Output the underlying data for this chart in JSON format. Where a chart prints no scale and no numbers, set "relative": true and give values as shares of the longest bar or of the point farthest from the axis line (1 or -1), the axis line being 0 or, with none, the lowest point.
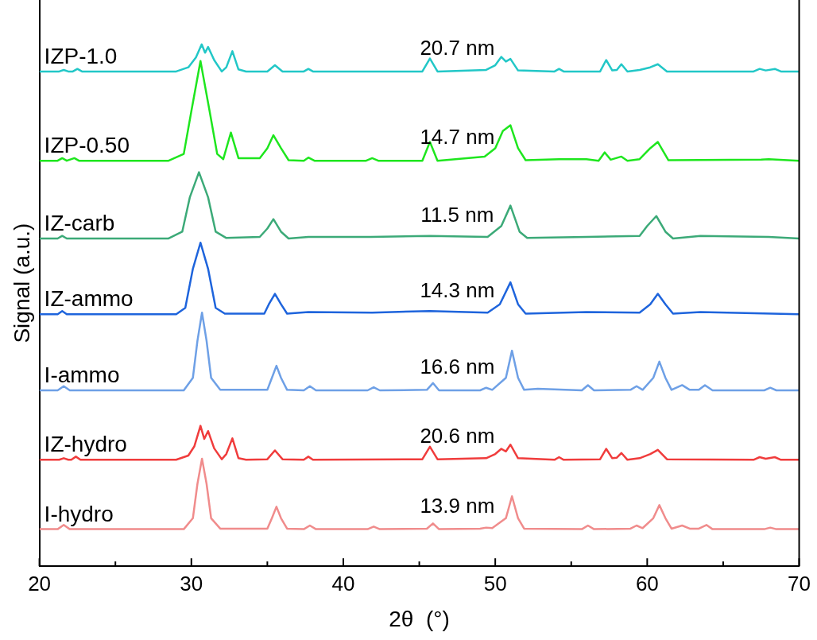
{
  "chart_data": {
    "type": "line",
    "relative": true,
    "xlabel": "2θ  (°)",
    "ylabel": "Signal (a.u.)",
    "xlim": [
      20,
      70
    ],
    "xticks": [
      20,
      {
        "value": 25,
        "label": null
      },
      30,
      {
        "value": 35,
        "label": null
      },
      40,
      {
        "value": 45,
        "label": null
      },
      50,
      {
        "value": 55,
        "label": null
      },
      60,
      {
        "value": 65,
        "label": null
      },
      70
    ],
    "line_style": "solid",
    "series": [
      {
        "name": "IZP-1.0",
        "color": "#22c7c7",
        "x": [
          20,
          21.3,
          21.6,
          21.9,
          22.2,
          22.5,
          22.8,
          29.0,
          29.8,
          30.3,
          30.68,
          30.9,
          31.1,
          31.5,
          32.0,
          32.3,
          32.7,
          33.1,
          33.6,
          35.0,
          35.5,
          36.0,
          37.4,
          37.7,
          38.0,
          45.2,
          45.7,
          46.2,
          49.4,
          50.0,
          50.4,
          50.7,
          51.0,
          51.5,
          53.9,
          54.2,
          54.5,
          56.9,
          57.3,
          57.7,
          58.0,
          58.3,
          58.7,
          59.5,
          60.2,
          60.7,
          61.3,
          67.0,
          67.4,
          67.8,
          68.4,
          68.8,
          70
        ],
        "values": [
          0.948,
          0.948,
          0.951,
          0.948,
          0.948,
          0.953,
          0.948,
          0.948,
          0.956,
          0.975,
          1.0,
          0.984,
          0.995,
          0.97,
          0.948,
          0.956,
          0.987,
          0.952,
          0.948,
          0.948,
          0.96,
          0.948,
          0.948,
          0.953,
          0.948,
          0.948,
          0.973,
          0.948,
          0.951,
          0.96,
          0.976,
          0.967,
          0.972,
          0.95,
          0.948,
          0.953,
          0.948,
          0.948,
          0.97,
          0.95,
          0.951,
          0.962,
          0.948,
          0.951,
          0.956,
          0.962,
          0.948,
          0.948,
          0.953,
          0.95,
          0.953,
          0.948,
          0.948
        ]
      },
      {
        "name": "IZP-0.50",
        "color": "#1ee61e",
        "x": [
          20,
          21.2,
          21.5,
          21.8,
          22.3,
          22.6,
          28.5,
          29.5,
          30.0,
          30.6,
          31.2,
          31.7,
          32.1,
          32.6,
          33.1,
          34.5,
          35.0,
          35.4,
          35.9,
          36.4,
          37.4,
          37.7,
          38.1,
          41.5,
          41.9,
          42.3,
          45.2,
          45.7,
          46.2,
          49.3,
          50.0,
          50.5,
          51.0,
          51.5,
          52.0,
          54.2,
          56.0,
          56.8,
          57.2,
          57.6,
          58.3,
          58.7,
          59.5,
          60.2,
          60.7,
          61.4,
          67.5,
          68.0,
          70
        ],
        "values": [
          0.777,
          0.777,
          0.782,
          0.777,
          0.782,
          0.777,
          0.777,
          0.79,
          0.872,
          0.968,
          0.872,
          0.79,
          0.78,
          0.831,
          0.782,
          0.782,
          0.801,
          0.826,
          0.801,
          0.778,
          0.777,
          0.783,
          0.777,
          0.777,
          0.782,
          0.777,
          0.777,
          0.813,
          0.777,
          0.785,
          0.801,
          0.834,
          0.845,
          0.801,
          0.778,
          0.78,
          0.78,
          0.777,
          0.793,
          0.779,
          0.785,
          0.777,
          0.78,
          0.801,
          0.813,
          0.778,
          0.779,
          0.78,
          0.777
        ]
      },
      {
        "name": "IZ-carb",
        "color": "#3caa78",
        "x": [
          20,
          21.2,
          21.5,
          21.8,
          28.5,
          29.4,
          29.9,
          30.5,
          31.1,
          31.6,
          32.3,
          34.5,
          35.0,
          35.4,
          35.9,
          36.4,
          37.7,
          41.8,
          45.7,
          49.5,
          50.4,
          51.0,
          51.6,
          52.1,
          56.0,
          59.5,
          60.0,
          60.6,
          61.2,
          61.7,
          63.5,
          68.0,
          70
        ],
        "values": [
          0.628,
          0.628,
          0.633,
          0.628,
          0.628,
          0.641,
          0.707,
          0.755,
          0.707,
          0.641,
          0.629,
          0.631,
          0.647,
          0.665,
          0.641,
          0.628,
          0.631,
          0.631,
          0.633,
          0.631,
          0.652,
          0.691,
          0.641,
          0.629,
          0.631,
          0.633,
          0.652,
          0.671,
          0.641,
          0.628,
          0.633,
          0.631,
          0.628
        ]
      },
      {
        "name": "IZ-ammo",
        "color": "#1e64dc",
        "x": [
          20,
          21.2,
          21.5,
          21.8,
          29.0,
          29.6,
          30.1,
          30.6,
          31.1,
          31.6,
          32.2,
          34.8,
          35.1,
          35.5,
          35.9,
          36.3,
          37.7,
          41.9,
          45.7,
          49.5,
          50.3,
          51.0,
          51.5,
          52.0,
          56.0,
          59.5,
          60.2,
          60.7,
          61.2,
          61.7,
          63.5,
          70
        ],
        "values": [
          0.483,
          0.483,
          0.489,
          0.483,
          0.483,
          0.495,
          0.57,
          0.62,
          0.57,
          0.495,
          0.484,
          0.484,
          0.502,
          0.522,
          0.502,
          0.484,
          0.487,
          0.486,
          0.489,
          0.486,
          0.502,
          0.544,
          0.502,
          0.484,
          0.487,
          0.486,
          0.502,
          0.522,
          0.502,
          0.484,
          0.487,
          0.483
        ]
      },
      {
        "name": "I-ammo",
        "color": "#6ea0e6",
        "x": [
          20,
          21.2,
          21.6,
          22.0,
          29.5,
          30.1,
          30.4,
          30.7,
          31.0,
          31.3,
          31.9,
          35.0,
          35.3,
          35.6,
          35.9,
          36.3,
          37.4,
          37.8,
          38.2,
          41.6,
          42.0,
          42.4,
          45.5,
          45.9,
          46.3,
          49.0,
          49.4,
          49.8,
          50.7,
          51.1,
          51.5,
          51.9,
          52.8,
          55.7,
          56.1,
          56.5,
          58.9,
          59.3,
          59.7,
          60.4,
          60.8,
          61.2,
          61.6,
          62.3,
          62.8,
          63.4,
          63.8,
          64.3,
          67.7,
          68.1,
          68.5,
          70
        ],
        "values": [
          0.337,
          0.337,
          0.345,
          0.337,
          0.337,
          0.361,
          0.432,
          0.486,
          0.432,
          0.361,
          0.338,
          0.338,
          0.361,
          0.384,
          0.361,
          0.338,
          0.337,
          0.345,
          0.337,
          0.337,
          0.343,
          0.337,
          0.338,
          0.351,
          0.337,
          0.337,
          0.342,
          0.338,
          0.361,
          0.413,
          0.361,
          0.338,
          0.34,
          0.337,
          0.347,
          0.337,
          0.338,
          0.345,
          0.338,
          0.361,
          0.392,
          0.361,
          0.338,
          0.347,
          0.338,
          0.338,
          0.347,
          0.337,
          0.337,
          0.342,
          0.337,
          0.337
        ]
      },
      {
        "name": "IZ-hydro",
        "color": "#f03c3c",
        "x": [
          20,
          21.3,
          21.6,
          21.9,
          22.1,
          22.4,
          22.7,
          29.0,
          29.8,
          30.2,
          30.6,
          30.85,
          31.1,
          31.5,
          32.0,
          32.3,
          32.7,
          33.1,
          33.6,
          35.0,
          35.5,
          36.0,
          37.4,
          37.7,
          38.0,
          45.2,
          45.7,
          46.2,
          49.4,
          50.0,
          50.4,
          50.7,
          51.0,
          51.5,
          53.9,
          54.2,
          54.5,
          56.9,
          57.3,
          57.7,
          58.0,
          58.3,
          58.7,
          59.5,
          60.2,
          60.7,
          61.3,
          67.0,
          67.4,
          67.8,
          68.4,
          68.8,
          70
        ],
        "values": [
          0.204,
          0.204,
          0.207,
          0.204,
          0.204,
          0.21,
          0.204,
          0.204,
          0.212,
          0.23,
          0.269,
          0.244,
          0.259,
          0.226,
          0.205,
          0.215,
          0.245,
          0.207,
          0.204,
          0.205,
          0.222,
          0.205,
          0.204,
          0.21,
          0.204,
          0.205,
          0.229,
          0.205,
          0.207,
          0.215,
          0.225,
          0.22,
          0.233,
          0.207,
          0.204,
          0.209,
          0.204,
          0.205,
          0.225,
          0.207,
          0.208,
          0.217,
          0.204,
          0.207,
          0.215,
          0.223,
          0.205,
          0.204,
          0.209,
          0.206,
          0.209,
          0.204,
          0.204
        ]
      },
      {
        "name": "I-hydro",
        "color": "#f08c8c",
        "x": [
          20,
          21.2,
          21.6,
          22.0,
          29.5,
          30.1,
          30.4,
          30.7,
          31.0,
          31.3,
          31.9,
          35.0,
          35.3,
          35.6,
          35.9,
          36.3,
          37.4,
          37.8,
          38.2,
          41.6,
          42.0,
          42.4,
          45.5,
          45.9,
          46.3,
          49.0,
          49.4,
          49.8,
          50.7,
          51.1,
          51.5,
          51.9,
          55.7,
          56.1,
          56.5,
          58.9,
          59.3,
          59.7,
          60.4,
          60.8,
          61.2,
          61.6,
          62.3,
          62.8,
          63.4,
          63.9,
          64.3,
          67.7,
          68.1,
          68.5,
          70
        ],
        "values": [
          0.071,
          0.071,
          0.079,
          0.071,
          0.071,
          0.092,
          0.158,
          0.206,
          0.158,
          0.092,
          0.072,
          0.072,
          0.092,
          0.114,
          0.092,
          0.072,
          0.071,
          0.078,
          0.071,
          0.071,
          0.076,
          0.071,
          0.072,
          0.082,
          0.071,
          0.072,
          0.074,
          0.073,
          0.092,
          0.134,
          0.092,
          0.072,
          0.071,
          0.078,
          0.071,
          0.072,
          0.078,
          0.073,
          0.092,
          0.117,
          0.092,
          0.072,
          0.078,
          0.072,
          0.072,
          0.079,
          0.071,
          0.071,
          0.074,
          0.071,
          0.071
        ]
      }
    ],
    "annotations": [
      "20.7 nm",
      "14.7 nm",
      "11.5 nm",
      "14.3 nm",
      "16.6 nm",
      "20.6 nm",
      "13.9 nm"
    ]
  }
}
